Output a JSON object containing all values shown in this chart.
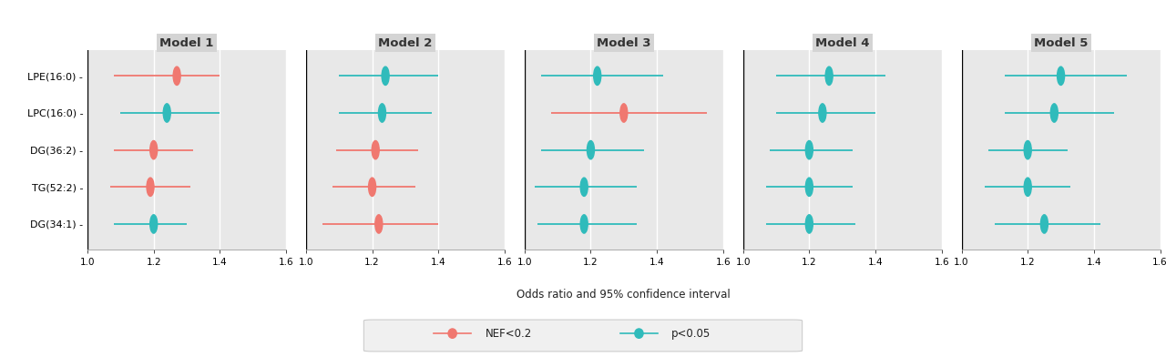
{
  "metabolites": [
    "LPE(16:0)",
    "LPC(16:0)",
    "DG(36:2)",
    "TG(52:2)",
    "DG(34:1)"
  ],
  "models": [
    "Model 1",
    "Model 2",
    "Model 3",
    "Model 4",
    "Model 5"
  ],
  "color_nef": "#F07870",
  "color_p": "#30BBBB",
  "panel_bg": "#E8E8E8",
  "header_bg": "#D4D4D4",
  "fig_bg": "#FFFFFF",
  "xlim": [
    1.0,
    1.6
  ],
  "xticks": [
    1.0,
    1.2,
    1.4,
    1.6
  ],
  "xlabel": "Odds ratio and 95% confidence interval",
  "data": {
    "Model 1": {
      "LPE(16:0)": {
        "or": 1.27,
        "lo": 1.08,
        "hi": 1.4,
        "color": "nef"
      },
      "LPC(16:0)": {
        "or": 1.24,
        "lo": 1.1,
        "hi": 1.4,
        "color": "p"
      },
      "DG(36:2)": {
        "or": 1.2,
        "lo": 1.08,
        "hi": 1.32,
        "color": "nef"
      },
      "TG(52:2)": {
        "or": 1.19,
        "lo": 1.07,
        "hi": 1.31,
        "color": "nef"
      },
      "DG(34:1)": {
        "or": 1.2,
        "lo": 1.08,
        "hi": 1.3,
        "color": "p"
      }
    },
    "Model 2": {
      "LPE(16:0)": {
        "or": 1.24,
        "lo": 1.1,
        "hi": 1.4,
        "color": "p"
      },
      "LPC(16:0)": {
        "or": 1.23,
        "lo": 1.1,
        "hi": 1.38,
        "color": "p"
      },
      "DG(36:2)": {
        "or": 1.21,
        "lo": 1.09,
        "hi": 1.34,
        "color": "nef"
      },
      "TG(52:2)": {
        "or": 1.2,
        "lo": 1.08,
        "hi": 1.33,
        "color": "nef"
      },
      "DG(34:1)": {
        "or": 1.22,
        "lo": 1.05,
        "hi": 1.4,
        "color": "nef"
      }
    },
    "Model 3": {
      "LPE(16:0)": {
        "or": 1.22,
        "lo": 1.05,
        "hi": 1.42,
        "color": "p"
      },
      "LPC(16:0)": {
        "or": 1.3,
        "lo": 1.08,
        "hi": 1.55,
        "color": "nef"
      },
      "DG(36:2)": {
        "or": 1.2,
        "lo": 1.05,
        "hi": 1.36,
        "color": "p"
      },
      "TG(52:2)": {
        "or": 1.18,
        "lo": 1.03,
        "hi": 1.34,
        "color": "p"
      },
      "DG(34:1)": {
        "or": 1.18,
        "lo": 1.04,
        "hi": 1.34,
        "color": "p"
      }
    },
    "Model 4": {
      "LPE(16:0)": {
        "or": 1.26,
        "lo": 1.1,
        "hi": 1.43,
        "color": "p"
      },
      "LPC(16:0)": {
        "or": 1.24,
        "lo": 1.1,
        "hi": 1.4,
        "color": "p"
      },
      "DG(36:2)": {
        "or": 1.2,
        "lo": 1.08,
        "hi": 1.33,
        "color": "p"
      },
      "TG(52:2)": {
        "or": 1.2,
        "lo": 1.07,
        "hi": 1.33,
        "color": "p"
      },
      "DG(34:1)": {
        "or": 1.2,
        "lo": 1.07,
        "hi": 1.34,
        "color": "p"
      }
    },
    "Model 5": {
      "LPE(16:0)": {
        "or": 1.3,
        "lo": 1.13,
        "hi": 1.5,
        "color": "p"
      },
      "LPC(16:0)": {
        "or": 1.28,
        "lo": 1.13,
        "hi": 1.46,
        "color": "p"
      },
      "DG(36:2)": {
        "or": 1.2,
        "lo": 1.08,
        "hi": 1.32,
        "color": "p"
      },
      "TG(52:2)": {
        "or": 1.2,
        "lo": 1.07,
        "hi": 1.33,
        "color": "p"
      },
      "DG(34:1)": {
        "or": 1.25,
        "lo": 1.1,
        "hi": 1.42,
        "color": "p"
      }
    }
  }
}
